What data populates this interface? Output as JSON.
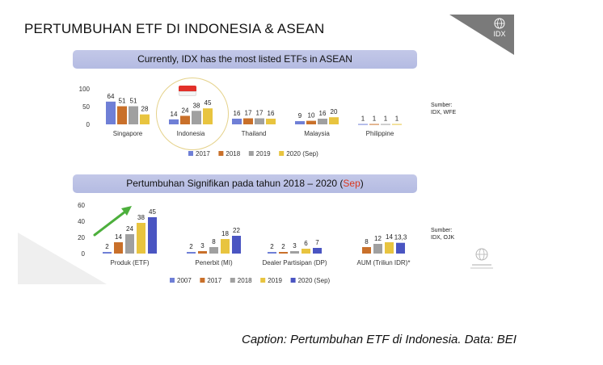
{
  "page": {
    "title": "PERTUMBUHAN ETF DI INDONESIA & ASEAN",
    "logo_text": "IDX",
    "caption": "Caption: Pertumbuhan ETF di Indonesia. Data: BEI"
  },
  "top_panel": {
    "banner": "Currently, IDX has the most listed ETFs in ASEAN",
    "source_line1": "Sumber:",
    "source_line2": "IDX, WFE"
  },
  "bottom_panel": {
    "banner_main": "Pertumbuhan Signifikan pada tahun 2018 – 2020 (",
    "banner_highlight": "Sep",
    "banner_end": ")",
    "source_line1": "Sumber:",
    "source_line2": "IDX, OJK"
  },
  "colors": {
    "2007": "#6f7fd6",
    "2017": "#c9702a",
    "2018": "#a0a0a0",
    "2019": "#e8c43f",
    "2020_sep": "#4a55c2",
    "banner": "#b9bfe3",
    "accent_green": "#4caf3c"
  },
  "chart_data": [
    {
      "type": "bar",
      "categories": [
        "Singapore",
        "Indonesia",
        "Thailand",
        "Malaysia",
        "Philippine"
      ],
      "series": [
        {
          "name": "2017",
          "color": "#6f7fd6",
          "values": [
            64,
            14,
            16,
            9,
            1
          ]
        },
        {
          "name": "2018",
          "color": "#c9702a",
          "values": [
            51,
            24,
            17,
            10,
            1
          ]
        },
        {
          "name": "2019",
          "color": "#a0a0a0",
          "values": [
            51,
            38,
            17,
            16,
            1
          ]
        },
        {
          "name": "2020 (Sep)",
          "color": "#e8c43f",
          "values": [
            28,
            45,
            16,
            20,
            1
          ]
        }
      ],
      "yticks": [
        "100",
        "50",
        "0"
      ],
      "ylim": [
        0,
        100
      ],
      "legend_position": "bottom"
    },
    {
      "type": "bar",
      "categories": [
        "Produk (ETF)",
        "Penerbit (MI)",
        "Dealer Partisipan (DP)",
        "AUM (Triliun IDR)*"
      ],
      "series": [
        {
          "name": "2007",
          "color": "#6f7fd6",
          "values": [
            2,
            2,
            2,
            null
          ],
          "labels": [
            "2",
            "2",
            "2",
            ""
          ]
        },
        {
          "name": "2017",
          "color": "#c9702a",
          "values": [
            14,
            3,
            2,
            8
          ],
          "labels": [
            "14",
            "3",
            "2",
            "8"
          ]
        },
        {
          "name": "2018",
          "color": "#a0a0a0",
          "values": [
            24,
            8,
            3,
            12
          ],
          "labels": [
            "24",
            "8",
            "3",
            "12"
          ]
        },
        {
          "name": "2019",
          "color": "#e8c43f",
          "values": [
            38,
            18,
            6,
            14
          ],
          "labels": [
            "38",
            "18",
            "6",
            "14"
          ]
        },
        {
          "name": "2020 (Sep)",
          "color": "#4a55c2",
          "values": [
            45,
            22,
            7,
            13.3
          ],
          "labels": [
            "45",
            "22",
            "7",
            "13,3"
          ]
        }
      ],
      "yticks": [
        "60",
        "40",
        "20",
        "0"
      ],
      "ylim": [
        0,
        60
      ],
      "legend_position": "bottom",
      "annotations": [
        "green upward arrow over Produk (ETF)"
      ]
    }
  ]
}
